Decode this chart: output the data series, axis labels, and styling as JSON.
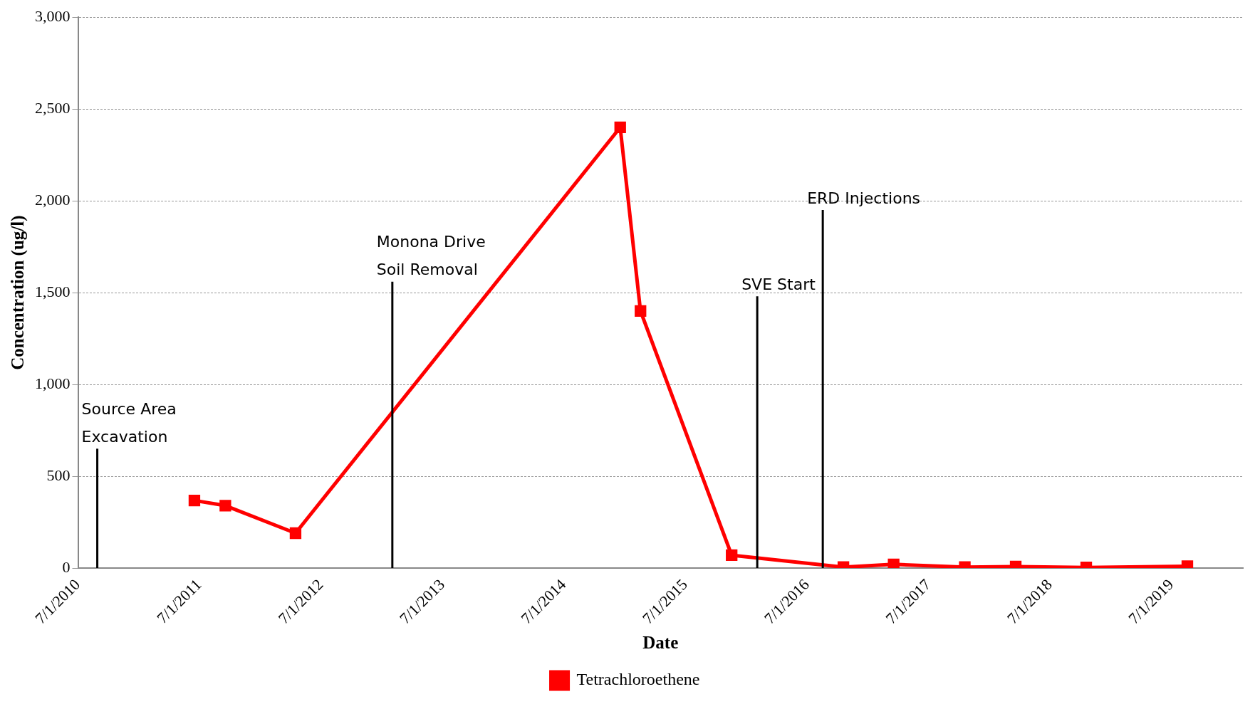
{
  "chart_data": {
    "type": "line",
    "xlabel": "Date",
    "ylabel": "Concentration (ug/l)",
    "series": [
      {
        "name": "Tetrachloroethene",
        "color": "#ff0000",
        "x": [
          "2011-06-16",
          "2011-09-17",
          "2012-04-15",
          "2014-12-17",
          "2015-02-16",
          "2015-11-17",
          "2016-10-18",
          "2017-03-18",
          "2017-10-18",
          "2018-03-20",
          "2018-10-18",
          "2019-08-18"
        ],
        "values": [
          368,
          340,
          190,
          2400,
          1400,
          70,
          5,
          20,
          5,
          8,
          3,
          10
        ]
      }
    ],
    "xlim": [
      "2010-07-01",
      "2020-02-01"
    ],
    "xticks": [
      {
        "value": "2010-07-01",
        "label": "7/1/2010"
      },
      {
        "value": "2011-07-01",
        "label": "7/1/2011"
      },
      {
        "value": "2012-07-01",
        "label": "7/1/2012"
      },
      {
        "value": "2013-07-01",
        "label": "7/1/2013"
      },
      {
        "value": "2014-07-01",
        "label": "7/1/2014"
      },
      {
        "value": "2015-07-01",
        "label": "7/1/2015"
      },
      {
        "value": "2016-07-01",
        "label": "7/1/2016"
      },
      {
        "value": "2017-07-01",
        "label": "7/1/2017"
      },
      {
        "value": "2018-07-01",
        "label": "7/1/2018"
      },
      {
        "value": "2019-07-01",
        "label": "7/1/2019"
      }
    ],
    "ylim": [
      0,
      3000
    ],
    "yticks": [
      {
        "value": 0,
        "label": "0"
      },
      {
        "value": 500,
        "label": "500"
      },
      {
        "value": 1000,
        "label": "1,000"
      },
      {
        "value": 1500,
        "label": "1,500"
      },
      {
        "value": 2000,
        "label": "2,000"
      },
      {
        "value": 2500,
        "label": "2,500"
      },
      {
        "value": 3000,
        "label": "3,000"
      }
    ],
    "ref_lines": [
      {
        "axis": "x",
        "value": "2010-08-28",
        "color": "#000000"
      },
      {
        "axis": "x",
        "value": "2013-01-31",
        "color": "#000000"
      },
      {
        "axis": "x",
        "value": "2016-02-02",
        "color": "#000000"
      },
      {
        "axis": "x",
        "value": "2016-08-17",
        "color": "#000000"
      }
    ],
    "annotations": [
      {
        "text": "Source Area\nExcavation",
        "x": "2010-08-28",
        "y": 650
      },
      {
        "text": "Monona Drive\nSoil Removal",
        "x": "2013-01-31",
        "y": 1560
      },
      {
        "text": "SVE Start",
        "x": "2016-02-02",
        "y": 1480
      },
      {
        "text": "ERD Injections",
        "x": "2016-08-17",
        "y": 1950
      }
    ],
    "grid": "y",
    "legend": "bottom",
    "marker": "square",
    "line_style": "solid"
  }
}
